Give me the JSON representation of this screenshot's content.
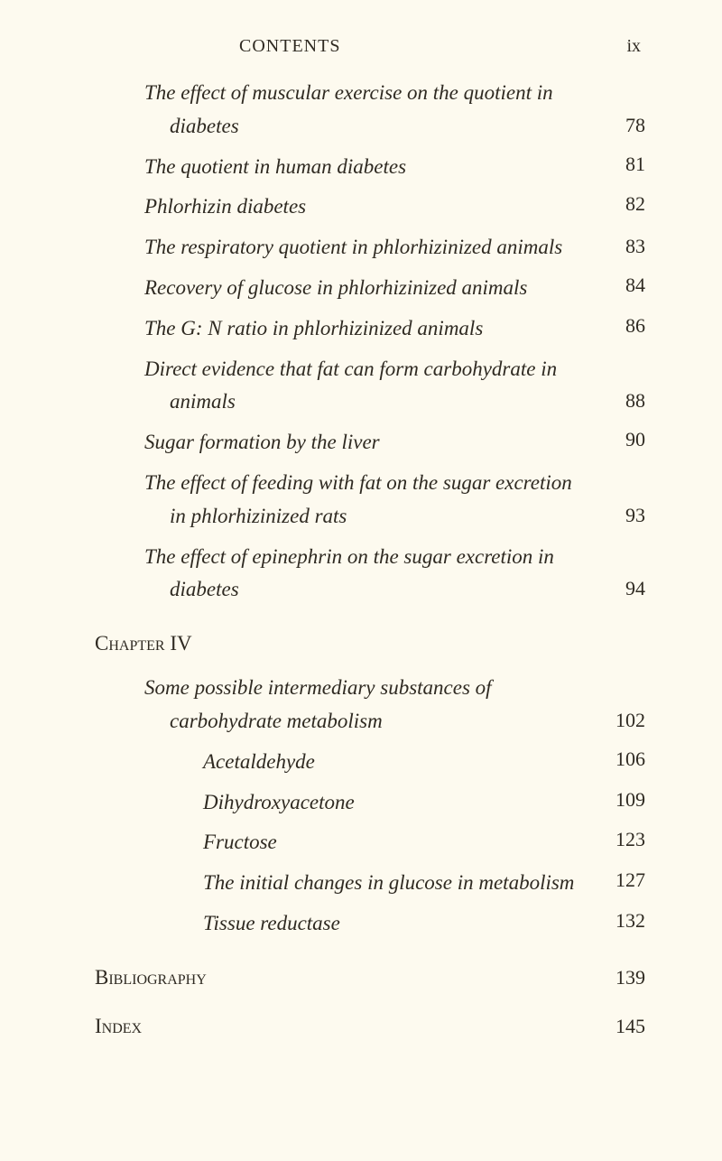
{
  "header": {
    "title": "CONTENTS",
    "roman": "ix"
  },
  "entries_top": [
    {
      "text": "The effect of muscular exercise on the quotient in diabetes",
      "page": "78",
      "wrap": true
    },
    {
      "text": "The quotient in human diabetes",
      "page": "81",
      "wrap": false
    },
    {
      "text": "Phlorhizin diabetes",
      "page": "82",
      "wrap": false
    },
    {
      "text": "The respiratory quotient in phlorhizinized animals",
      "page": "83",
      "wrap": true
    },
    {
      "text": "Recovery of glucose in phlorhizinized animals",
      "page": "84",
      "wrap": false
    },
    {
      "text": "The G: N ratio in phlorhizinized animals",
      "page": "86",
      "wrap": false
    },
    {
      "text": "Direct evidence that fat can form carbohydrate in animals",
      "page": "88",
      "wrap": true
    },
    {
      "text": "Sugar formation by the liver",
      "page": "90",
      "wrap": false
    },
    {
      "text": "The effect of feeding with fat on the sugar excretion in phlorhizinized rats",
      "page": "93",
      "wrap": true
    },
    {
      "text": "The effect of epinephrin on the sugar excretion in diabetes",
      "page": "94",
      "wrap": true
    }
  ],
  "chapter": {
    "label": "Chapter IV"
  },
  "chapter_main": {
    "text": "Some possible intermediary substances of carbohydrate metabolism",
    "page": "102"
  },
  "chapter_sub": [
    {
      "text": "Acetaldehyde",
      "page": "106"
    },
    {
      "text": "Dihydroxyacetone",
      "page": "109"
    },
    {
      "text": "Fructose",
      "page": "123"
    },
    {
      "text": "The initial changes in glucose in metabolism",
      "page": "127"
    },
    {
      "text": "Tissue reductase",
      "page": "132"
    }
  ],
  "sections": [
    {
      "label": "Bibliography",
      "page": "139"
    },
    {
      "label": "Index",
      "page": "145"
    }
  ]
}
